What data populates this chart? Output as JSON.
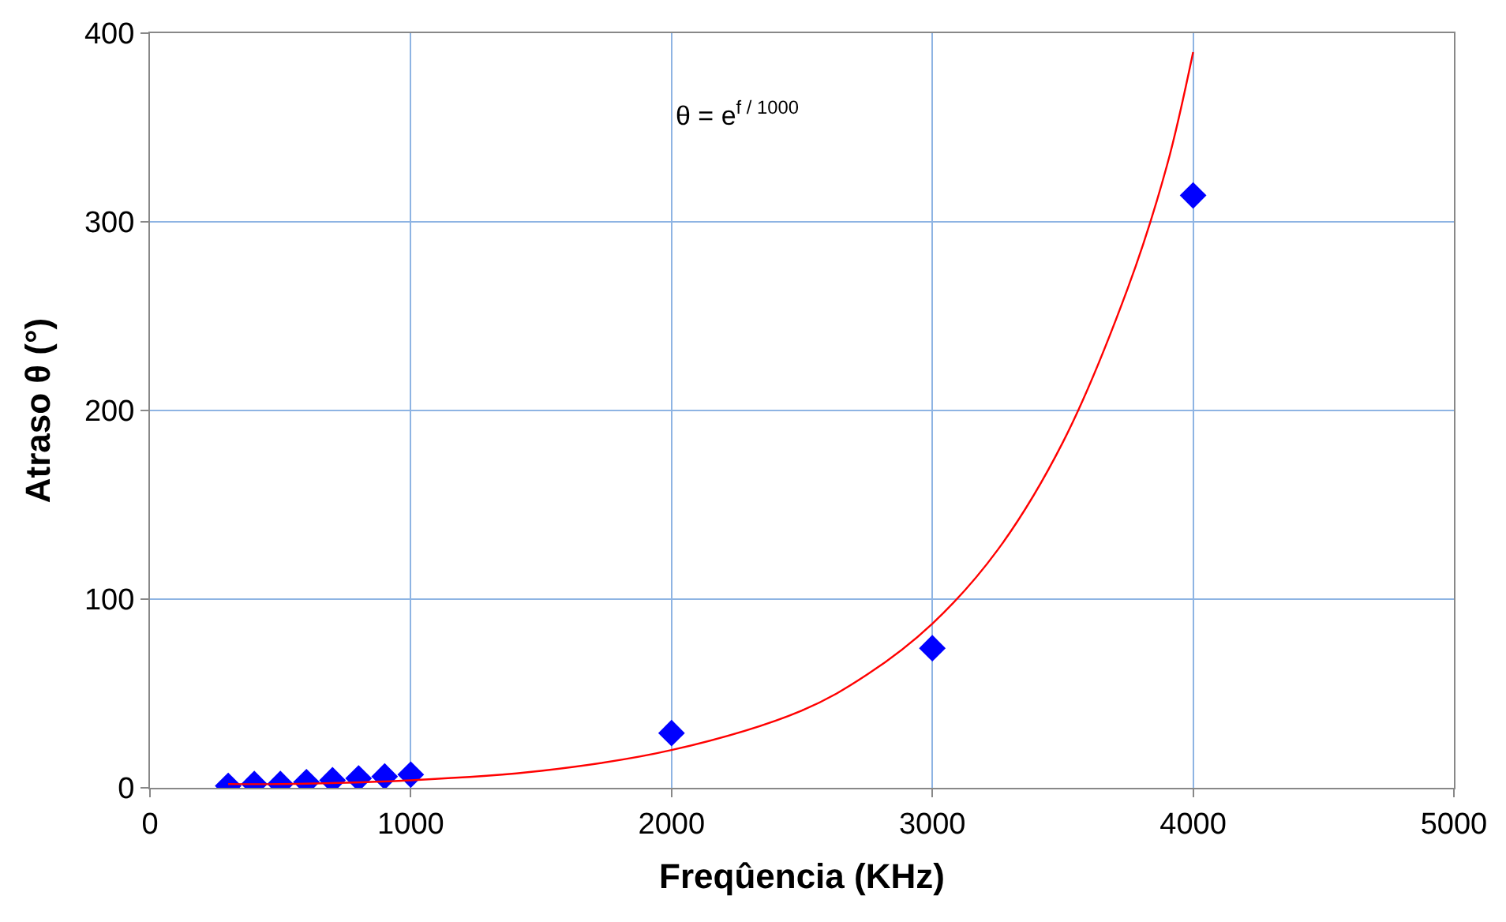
{
  "chart_data": {
    "type": "scatter",
    "xlabel": "Freqûencia (KHz)",
    "ylabel": "Atraso θ (°)",
    "xlim": [
      0,
      5000
    ],
    "xticks": [
      0,
      1000,
      2000,
      3000,
      4000,
      5000
    ],
    "ylim": [
      0,
      400
    ],
    "yticks": [
      0,
      100,
      200,
      300,
      400
    ],
    "grid": true,
    "legend": false,
    "annotations": [
      "θ = e$^{f / 1000}$"
    ],
    "series": [
      {
        "marker": "diamond",
        "color": "#0000ff",
        "x": [
          300,
          400,
          500,
          600,
          700,
          800,
          900,
          1000,
          2000,
          3000,
          4000
        ],
        "values": [
          1,
          2,
          2,
          3,
          4,
          5,
          6,
          7,
          29,
          74,
          314
        ]
      },
      {
        "type": "line",
        "marker": "none",
        "line_style": "solid",
        "color": "#ff0000",
        "x": [
          300,
          500,
          1000,
          1500,
          2000,
          2500,
          2750,
          3000,
          3250,
          3500,
          3750,
          3900,
          4000
        ],
        "values": [
          2,
          2,
          4,
          9,
          20,
          41,
          60,
          87,
          126,
          183,
          265,
          330,
          390
        ]
      }
    ]
  }
}
